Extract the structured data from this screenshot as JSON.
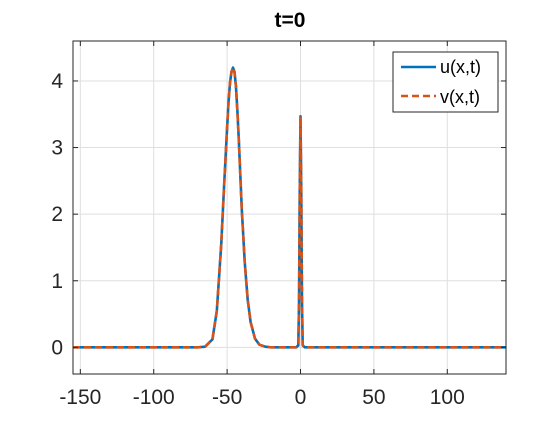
{
  "chart_data": {
    "type": "line",
    "title": "t=0",
    "xlabel": "",
    "ylabel": "",
    "xlim": [
      -155,
      140
    ],
    "ylim": [
      -0.4,
      4.6
    ],
    "x_ticks": [
      -150,
      -100,
      -50,
      0,
      50,
      100
    ],
    "y_ticks": [
      0,
      1,
      2,
      3,
      4
    ],
    "x_tick_labels": [
      "-150",
      "-100",
      "-50",
      "0",
      "50",
      "100"
    ],
    "y_tick_labels": [
      "0",
      "1",
      "2",
      "3",
      "4"
    ],
    "grid": true,
    "box": true,
    "legend": {
      "placement": "top-right",
      "entries": [
        "u(x,t)",
        "v(x,t)"
      ]
    },
    "series": [
      {
        "name": "u(x,t)",
        "color": "#0072BD",
        "line_style": "solid",
        "x": [
          -155,
          -80,
          -70,
          -65,
          -60,
          -57,
          -54,
          -52,
          -50,
          -49,
          -48,
          -47,
          -46,
          -45,
          -44,
          -43,
          -42,
          -41,
          -40,
          -38,
          -36,
          -34,
          -31,
          -28,
          -24,
          -20,
          -10,
          -3,
          -1.5,
          -1,
          -0.5,
          0,
          0.5,
          1,
          1.5,
          3,
          10,
          60,
          140
        ],
        "y": [
          0,
          0,
          0,
          0.01,
          0.12,
          0.55,
          1.55,
          2.45,
          3.3,
          3.7,
          3.98,
          4.14,
          4.2,
          4.14,
          3.92,
          3.55,
          3.1,
          2.58,
          2.07,
          1.28,
          0.72,
          0.38,
          0.13,
          0.04,
          0.01,
          0,
          0,
          0,
          0.03,
          0.7,
          2.4,
          3.47,
          2.4,
          0.7,
          0.03,
          0,
          0,
          0,
          0
        ]
      },
      {
        "name": "v(x,t)",
        "color": "#D95319",
        "line_style": "dashed",
        "x": [
          -155,
          -80,
          -70,
          -65,
          -60,
          -57,
          -54,
          -52,
          -50,
          -49,
          -48,
          -47,
          -46,
          -45,
          -44,
          -43,
          -42,
          -41,
          -40,
          -38,
          -36,
          -34,
          -31,
          -28,
          -24,
          -20,
          -10,
          -3,
          -1.5,
          -1,
          -0.5,
          0,
          0.5,
          1,
          1.5,
          3,
          10,
          60,
          140
        ],
        "y": [
          0,
          0,
          0,
          0.01,
          0.12,
          0.55,
          1.55,
          2.45,
          3.3,
          3.7,
          3.98,
          4.14,
          4.2,
          4.14,
          3.92,
          3.55,
          3.1,
          2.58,
          2.07,
          1.28,
          0.72,
          0.38,
          0.13,
          0.04,
          0.01,
          0,
          0,
          0,
          0.03,
          0.7,
          2.4,
          3.47,
          2.4,
          0.7,
          0.03,
          0,
          0,
          0,
          0
        ]
      }
    ]
  }
}
